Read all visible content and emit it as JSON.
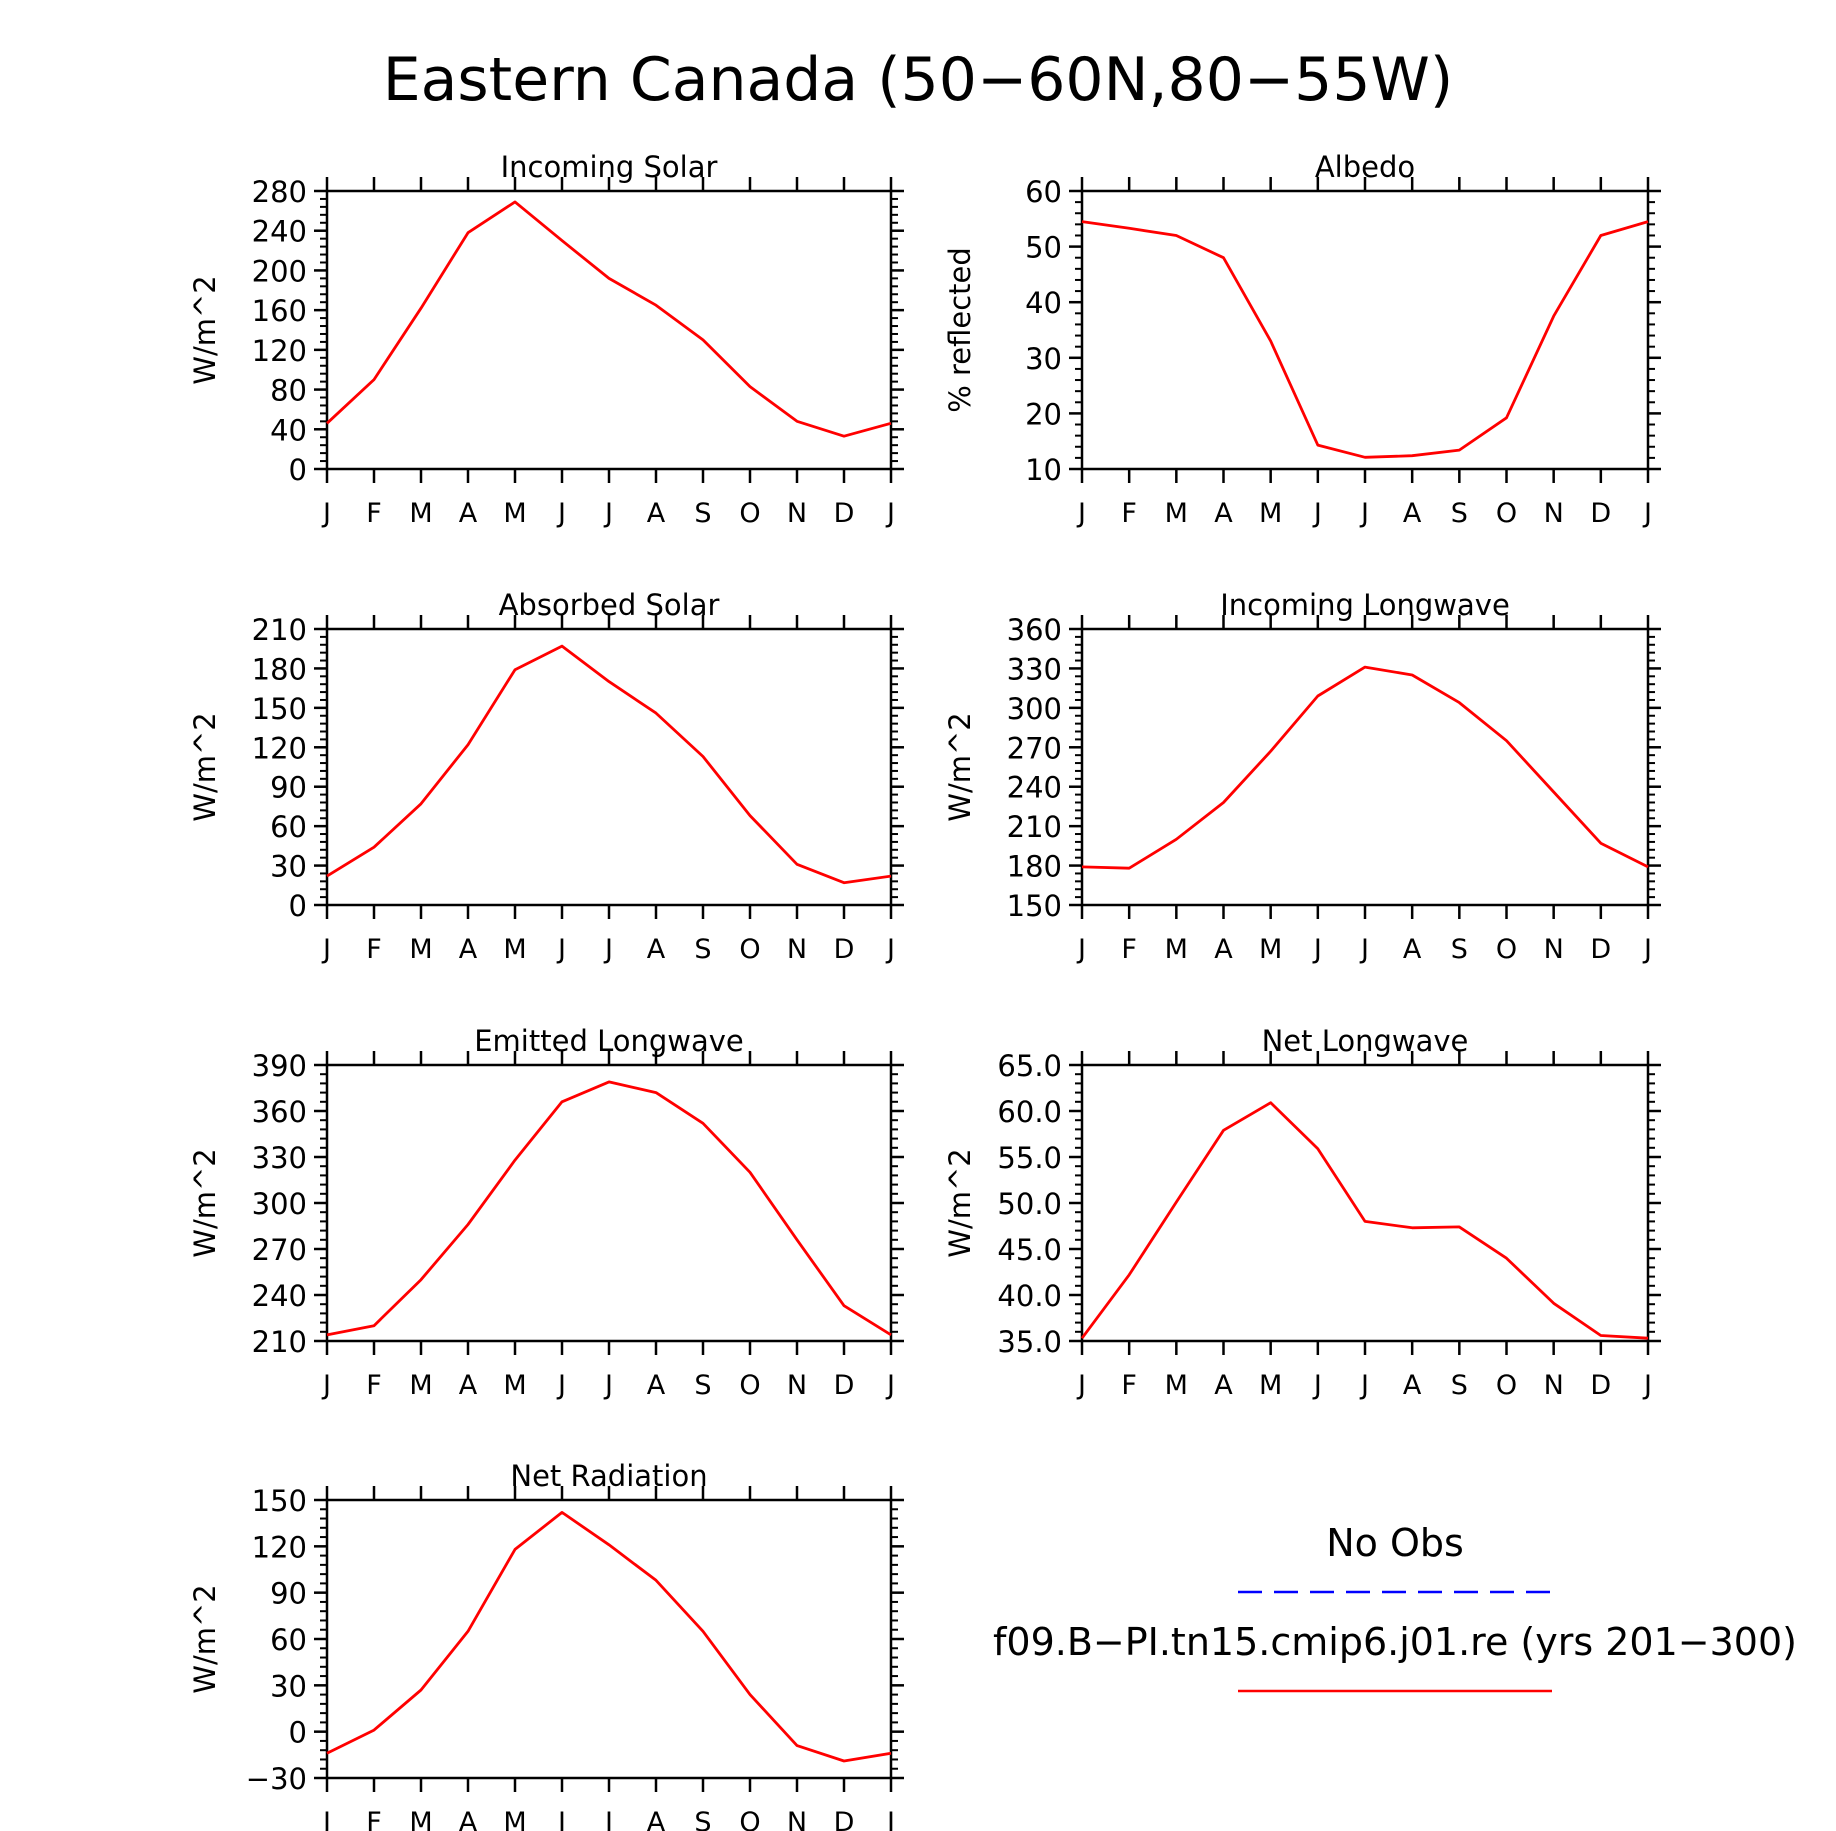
{
  "figure": {
    "title": "Eastern Canada (50−60N,80−55W)"
  },
  "legend": {
    "obs_label": "No Obs",
    "obs_color": "#0000ff",
    "model_label": "f09.B−PI.tn15.cmip6.j01.re (yrs 201−300)",
    "model_color": "#ff0000"
  },
  "chart_data": [
    {
      "type": "line",
      "title": "Incoming Solar",
      "ylabel": "W/m^2",
      "xlabel": "",
      "categories": [
        "J",
        "F",
        "M",
        "A",
        "M",
        "J",
        "J",
        "A",
        "S",
        "O",
        "N",
        "D",
        "J"
      ],
      "series": [
        {
          "values": [
            46,
            90,
            162,
            238,
            269,
            230,
            192,
            165,
            130,
            83,
            48,
            33,
            46
          ]
        }
      ],
      "ylim": [
        0,
        280
      ],
      "yticks": [
        "0",
        "40",
        "80",
        "120",
        "160",
        "200",
        "240",
        "280"
      ]
    },
    {
      "type": "line",
      "title": "Albedo",
      "ylabel": "% reflected",
      "xlabel": "",
      "categories": [
        "J",
        "F",
        "M",
        "A",
        "M",
        "J",
        "J",
        "A",
        "S",
        "O",
        "N",
        "D",
        "J"
      ],
      "series": [
        {
          "values": [
            54.5,
            53.3,
            52,
            48,
            33,
            14.3,
            12.1,
            12.4,
            13.4,
            19.2,
            37.5,
            52,
            54.5
          ]
        }
      ],
      "ylim": [
        10,
        60
      ],
      "yticks": [
        "10",
        "20",
        "30",
        "40",
        "50",
        "60"
      ]
    },
    {
      "type": "line",
      "title": "Absorbed Solar",
      "ylabel": "W/m^2",
      "xlabel": "",
      "categories": [
        "J",
        "F",
        "M",
        "A",
        "M",
        "J",
        "J",
        "A",
        "S",
        "O",
        "N",
        "D",
        "J"
      ],
      "series": [
        {
          "values": [
            22,
            44,
            77,
            122,
            179,
            197,
            170,
            146,
            113,
            68,
            31,
            17,
            22
          ]
        }
      ],
      "ylim": [
        0,
        210
      ],
      "yticks": [
        "0",
        "30",
        "60",
        "90",
        "120",
        "150",
        "180",
        "210"
      ]
    },
    {
      "type": "line",
      "title": "Incoming Longwave",
      "ylabel": "W/m^2",
      "xlabel": "",
      "categories": [
        "J",
        "F",
        "M",
        "A",
        "M",
        "J",
        "J",
        "A",
        "S",
        "O",
        "N",
        "D",
        "J"
      ],
      "series": [
        {
          "values": [
            179,
            178,
            200,
            228,
            267,
            309,
            331,
            325,
            304,
            275,
            236,
            197,
            179
          ]
        }
      ],
      "ylim": [
        150,
        360
      ],
      "yticks": [
        "150",
        "180",
        "210",
        "240",
        "270",
        "300",
        "330",
        "360"
      ]
    },
    {
      "type": "line",
      "title": "Emitted Longwave",
      "ylabel": "W/m^2",
      "xlabel": "",
      "categories": [
        "J",
        "F",
        "M",
        "A",
        "M",
        "J",
        "J",
        "A",
        "S",
        "O",
        "N",
        "D",
        "J"
      ],
      "series": [
        {
          "values": [
            214,
            220,
            250,
            286,
            328,
            366,
            379,
            372,
            352,
            320,
            276,
            233,
            214
          ]
        }
      ],
      "ylim": [
        210,
        390
      ],
      "yticks": [
        "210",
        "240",
        "270",
        "300",
        "330",
        "360",
        "390"
      ]
    },
    {
      "type": "line",
      "title": "Net Longwave",
      "ylabel": "W/m^2",
      "xlabel": "",
      "categories": [
        "J",
        "F",
        "M",
        "A",
        "M",
        "J",
        "J",
        "A",
        "S",
        "O",
        "N",
        "D",
        "J"
      ],
      "series": [
        {
          "values": [
            35.3,
            42.2,
            50.1,
            57.9,
            60.9,
            55.9,
            48.0,
            47.3,
            47.4,
            44.0,
            39.1,
            35.6,
            35.3
          ]
        }
      ],
      "ylim": [
        35,
        65
      ],
      "yticks": [
        "35.0",
        "40.0",
        "45.0",
        "50.0",
        "55.0",
        "60.0",
        "65.0"
      ]
    },
    {
      "type": "line",
      "title": "Net Radiation",
      "ylabel": "W/m^2",
      "xlabel": "",
      "categories": [
        "J",
        "F",
        "M",
        "A",
        "M",
        "J",
        "J",
        "A",
        "S",
        "O",
        "N",
        "D",
        "J"
      ],
      "series": [
        {
          "values": [
            -14,
            1,
            27,
            65,
            118,
            142,
            121,
            98,
            65,
            24,
            -9,
            -19,
            -14
          ]
        }
      ],
      "ylim": [
        -30,
        150
      ],
      "yticks": [
        "−30",
        "0",
        "30",
        "60",
        "90",
        "120",
        "150"
      ]
    }
  ]
}
